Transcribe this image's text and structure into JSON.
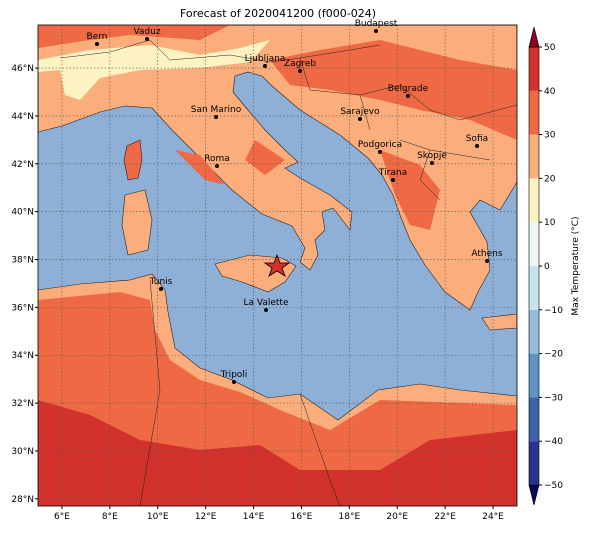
{
  "title": "Forecast of 2020041200 (f000-024)",
  "map": {
    "xlim": [
      5,
      25
    ],
    "ylim": [
      27.7,
      47.8
    ],
    "xticks": [
      {
        "value": 6,
        "label": "6°E"
      },
      {
        "value": 8,
        "label": "8°E"
      },
      {
        "value": 10,
        "label": "10°E"
      },
      {
        "value": 12,
        "label": "12°E"
      },
      {
        "value": 14,
        "label": "14°E"
      },
      {
        "value": 16,
        "label": "16°E"
      },
      {
        "value": 18,
        "label": "18°E"
      },
      {
        "value": 20,
        "label": "20°E"
      },
      {
        "value": 22,
        "label": "22°E"
      },
      {
        "value": 24,
        "label": "24°E"
      }
    ],
    "yticks": [
      {
        "value": 28,
        "label": "28°N"
      },
      {
        "value": 30,
        "label": "30°N"
      },
      {
        "value": 32,
        "label": "32°N"
      },
      {
        "value": 34,
        "label": "34°N"
      },
      {
        "value": 36,
        "label": "36°N"
      },
      {
        "value": 38,
        "label": "38°N"
      },
      {
        "value": 40,
        "label": "40°N"
      },
      {
        "value": 42,
        "label": "42°N"
      },
      {
        "value": 44,
        "label": "44°N"
      },
      {
        "value": 46,
        "label": "46°N"
      }
    ],
    "grid": true,
    "cities": [
      "Bern",
      "Vaduz",
      "Budapest",
      "Ljubljana",
      "Zagreb",
      "Belgrade",
      "Sarajevo",
      "San Marino",
      "Sofia",
      "Podgorica",
      "Skopje",
      "Roma",
      "Tirana",
      "Athens",
      "Tunis",
      "La Valette",
      "Tripoli"
    ]
  },
  "colorbar": {
    "label": "Max Temperature (°C)",
    "ticks": [
      {
        "value": -50,
        "label": "−50"
      },
      {
        "value": -40,
        "label": "−40"
      },
      {
        "value": -30,
        "label": "−30"
      },
      {
        "value": -20,
        "label": "−20"
      },
      {
        "value": -10,
        "label": "−10"
      },
      0,
      10,
      20,
      30,
      40,
      50
    ],
    "colors": [
      "#08085a",
      "#2b3390",
      "#3d62aa",
      "#5f93c3",
      "#94bedb",
      "#c7e3ee",
      "#ecf7f3",
      "#fdf3c2",
      "#fbae7c",
      "#ef6a44",
      "#d2322b",
      "#8c0020"
    ]
  }
}
